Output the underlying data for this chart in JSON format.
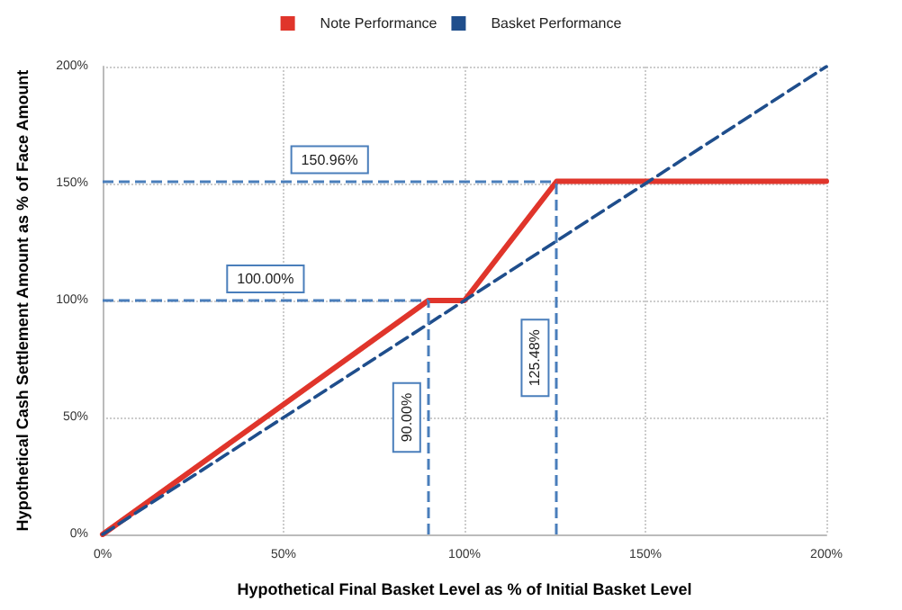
{
  "chart_data": {
    "type": "line",
    "xlabel": "Hypothetical Final Basket Level as % of Initial Basket Level",
    "ylabel": "Hypothetical Cash Settlement Amount as % of Face Amount",
    "series": [
      {
        "name": "Note Performance",
        "color": "#e0352b",
        "x": [
          0,
          90,
          100,
          125.48,
          200
        ],
        "values": [
          0,
          100,
          100,
          150.96,
          150.96
        ],
        "line_style": "solid"
      },
      {
        "name": "Basket Performance",
        "color": "#1f4e8c",
        "x": [
          0,
          200
        ],
        "values": [
          0,
          200
        ],
        "line_style": "dashed"
      }
    ],
    "xlim": [
      0,
      200
    ],
    "ylim": [
      0,
      200
    ],
    "xticks": [
      {
        "value": 0,
        "label": "0%"
      },
      {
        "value": 50,
        "label": "50%"
      },
      {
        "value": 100,
        "label": "100%"
      },
      {
        "value": 150,
        "label": "150%"
      },
      {
        "value": 200,
        "label": "200%"
      }
    ],
    "yticks": [
      {
        "value": 0,
        "label": "0%"
      },
      {
        "value": 50,
        "label": "50%"
      },
      {
        "value": 100,
        "label": "100%"
      },
      {
        "value": 150,
        "label": "150%"
      },
      {
        "value": 200,
        "label": "200%"
      }
    ],
    "ref_lines": [
      {
        "axis": "y",
        "value": 150.96,
        "label": "150.96%",
        "color": "#4a7ebb",
        "line_style": "dashed"
      },
      {
        "axis": "y",
        "value": 100,
        "label": "100.00%",
        "color": "#4a7ebb",
        "line_style": "dashed"
      },
      {
        "axis": "x",
        "value": 125.48,
        "label": "125.48%",
        "color": "#4a7ebb",
        "line_style": "dashed"
      },
      {
        "axis": "x",
        "value": 90,
        "label": "90.00%",
        "color": "#4a7ebb",
        "line_style": "dashed"
      }
    ],
    "grid": true,
    "legend": "top",
    "marker": "none"
  }
}
